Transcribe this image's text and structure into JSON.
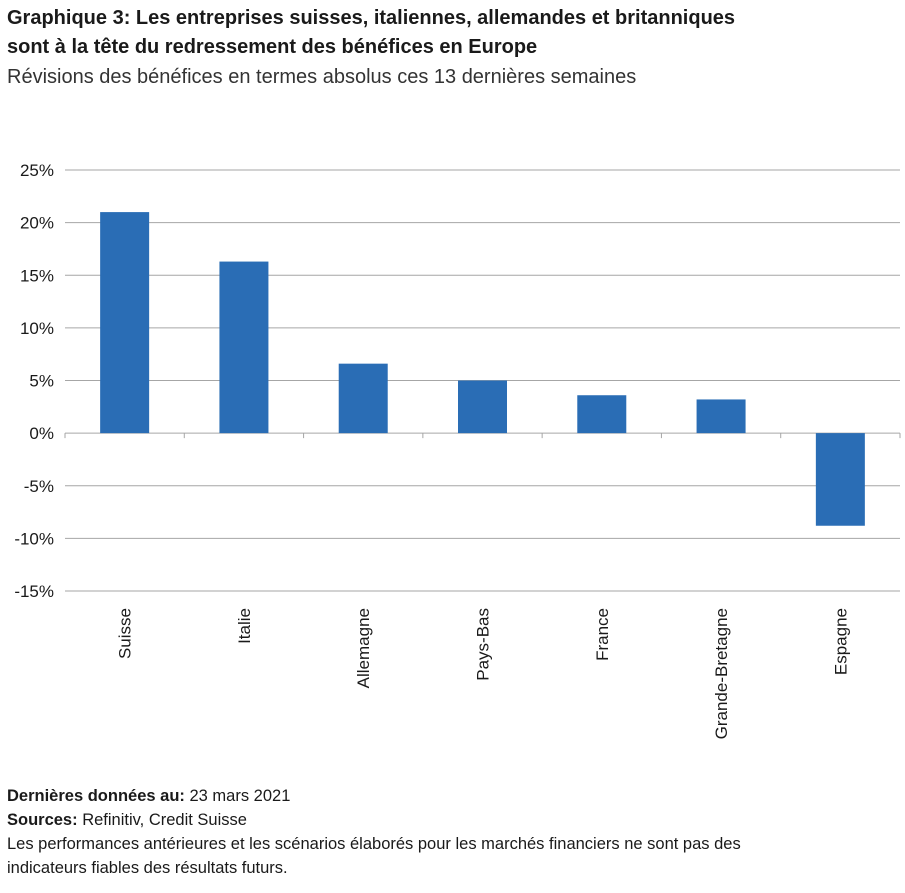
{
  "header": {
    "title_line1": "Graphique 3: Les entreprises suisses, italiennes, allemandes et britanniques",
    "title_line2": "sont à la tête du redressement des bénéfices en Europe",
    "subtitle": "Révisions des bénéfices en termes absolus ces 13 dernières semaines"
  },
  "chart_data": {
    "type": "bar",
    "categories": [
      "Suisse",
      "Italie",
      "Allemagne",
      "Pays-Bas",
      "France",
      "Grande-Bretagne",
      "Espagne"
    ],
    "values": [
      21.0,
      16.3,
      6.6,
      5.0,
      3.6,
      3.2,
      -8.8
    ],
    "y_ticks": [
      "25%",
      "20%",
      "15%",
      "10%",
      "5%",
      "0%",
      "-5%",
      "-10%",
      "-15%"
    ],
    "ylim": [
      -15,
      25
    ],
    "bar_color": "#2a6db5",
    "grid": true
  },
  "footer": {
    "date_label": "Dernières données au:",
    "date_value": "23 mars 2021",
    "sources_label": "Sources:",
    "sources_value": "Refinitiv, Credit Suisse",
    "disclaimer_line1": "Les performances antérieures et les scénarios élaborés pour les marchés financiers ne sont pas des",
    "disclaimer_line2": "indicateurs fiables des résultats futurs."
  }
}
